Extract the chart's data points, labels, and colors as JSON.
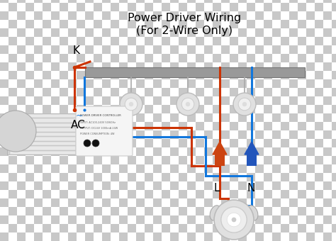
{
  "title_line1": "Power Driver Wiring",
  "title_line2": "(For 2-Wire Only)",
  "title_fontsize": 11.5,
  "wire_red": "#cc3300",
  "wire_blue": "#1177dd",
  "wire_gray": "#888888",
  "label_K": "K",
  "label_AC": "AC",
  "label_L": "L",
  "label_N": "N",
  "check_light": "#ffffff",
  "check_dark": "#c8c8c8",
  "check_size": 12
}
